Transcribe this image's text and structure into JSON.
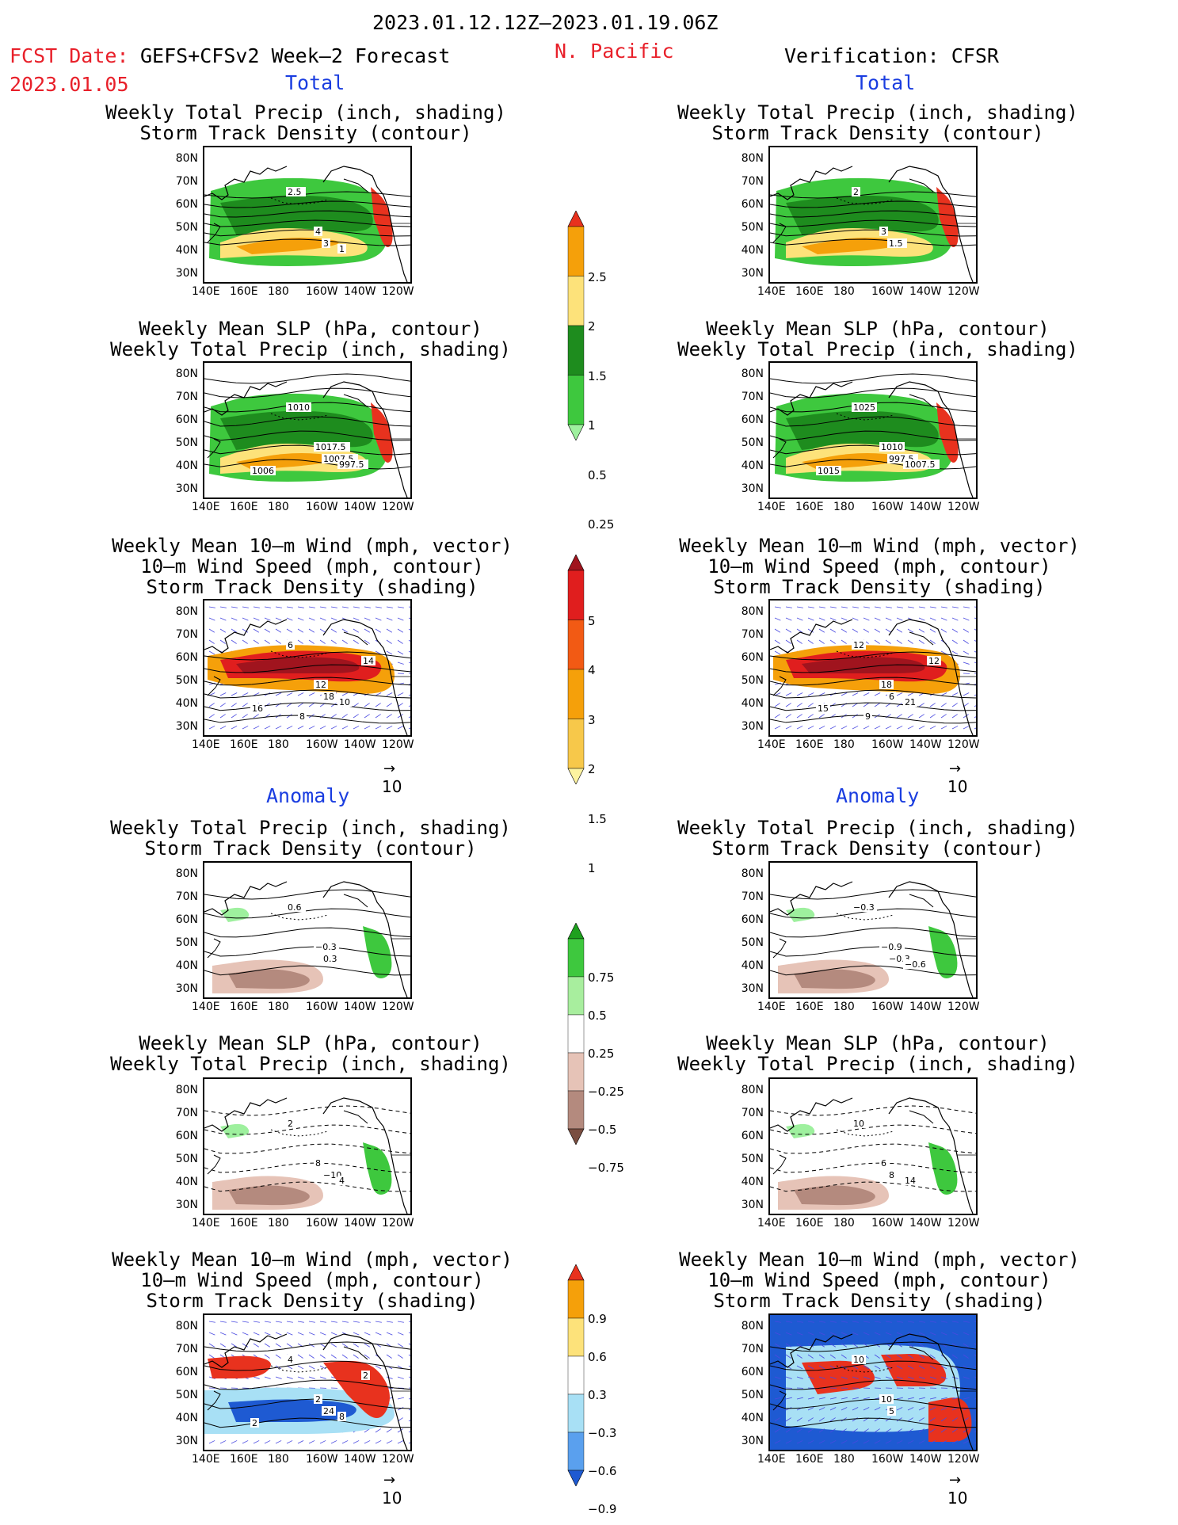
{
  "header": {
    "period": "2023.01.12.12Z–2023.01.19.06Z",
    "fcst_line1": "FCST Date: ",
    "fcst_model": "GEFS+CFSv2 Week–2 Forecast",
    "fcst_date": "2023.01.05",
    "region": "N. Pacific",
    "verification": "Verification: CFSR"
  },
  "sections": {
    "total": "Total",
    "anomaly": "Anomaly"
  },
  "panel_titles": {
    "precip_storm": [
      "Weekly Total Precip (inch, shading)",
      "Storm Track Density (contour)"
    ],
    "slp_precip": [
      "Weekly Mean SLP (hPa, contour)",
      "Weekly Total Precip (inch, shading)"
    ],
    "wind_storm": [
      "Weekly Mean 10–m Wind (mph, vector)",
      "10–m Wind Speed (mph, contour)",
      "Storm Track Density (shading)"
    ]
  },
  "axes": {
    "lat_ticks": [
      "80N",
      "70N",
      "60N",
      "50N",
      "40N",
      "30N"
    ],
    "lon_ticks": [
      "140E",
      "160E",
      "180",
      "160W",
      "140W",
      "120W"
    ]
  },
  "vector_ref": "10",
  "colorbars": {
    "precip_total": {
      "labels": [
        "2.5",
        "2",
        "1.5",
        "1",
        "0.5",
        "0.25"
      ],
      "colors": [
        "#e8321e",
        "#f5a00a",
        "#fde27a",
        "#1e8c1e",
        "#3ec83e",
        "#9ef09e"
      ]
    },
    "storm_total": {
      "labels": [
        "5",
        "4",
        "3",
        "2",
        "1.5",
        "1"
      ],
      "colors": [
        "#a0141e",
        "#e01e1e",
        "#f25a14",
        "#f5a00a",
        "#f7c84a",
        "#fdf3a0"
      ]
    },
    "precip_anom": {
      "labels": [
        "0.75",
        "0.5",
        "0.25",
        "−0.25",
        "−0.5",
        "−0.75"
      ],
      "colors": [
        "#1ea01e",
        "#3ec83e",
        "#a8ee9e",
        "#ffffff",
        "#e6c3b7",
        "#b48a7e",
        "#7a4e40"
      ]
    },
    "storm_anom": {
      "labels": [
        "0.9",
        "0.6",
        "0.3",
        "−0.3",
        "−0.6",
        "−0.9"
      ],
      "colors": [
        "#e8321e",
        "#f5a00a",
        "#fde27a",
        "#ffffff",
        "#a8e0f5",
        "#5aa0ee",
        "#1e5ad2"
      ]
    }
  },
  "contour_labels": {
    "fc_total_precip": [
      "2.5",
      "4",
      "3",
      "1"
    ],
    "ob_total_precip": [
      "2",
      "3",
      "1.5"
    ],
    "fc_total_slp": [
      "1010",
      "1017.5",
      "1007.5",
      "997.5",
      "1006"
    ],
    "ob_total_slp": [
      "1025",
      "1010",
      "997.5",
      "1007.5",
      "1015"
    ],
    "fc_total_wind": [
      "6",
      "12",
      "18",
      "10",
      "16",
      "14",
      "8"
    ],
    "ob_total_wind": [
      "12",
      "18",
      "6",
      "21",
      "15",
      "12",
      "9"
    ],
    "fc_anom_precip": [
      "0.6",
      "−0.3",
      "0.3"
    ],
    "ob_anom_precip": [
      "−0.3",
      "−0.9",
      "−0.3",
      "−0.6"
    ],
    "fc_anom_slp": [
      "2",
      "8",
      "−10",
      "4"
    ],
    "ob_anom_slp": [
      "10",
      "6",
      "8",
      "14"
    ],
    "fc_anom_wind": [
      "4",
      "2",
      "24",
      "8",
      "2",
      "2"
    ],
    "ob_anom_wind": [
      "10",
      "10",
      "5"
    ]
  },
  "map_colors": {
    "precip_light": "#9ef09e",
    "precip_mid": "#3ec83e",
    "precip_dark": "#1e8c1e",
    "precip_yellow": "#fde27a",
    "precip_orange": "#f5a00a",
    "precip_red": "#e8321e",
    "storm_dark": "#a0141e",
    "storm_red": "#e01e1e",
    "vector": "#4a4ae0",
    "dry_light": "#e6c3b7",
    "dry_mid": "#b48a7e",
    "wet": "#3ec83e",
    "anom_blue": "#1e5ad2",
    "anom_lblue": "#a8e0f5"
  }
}
